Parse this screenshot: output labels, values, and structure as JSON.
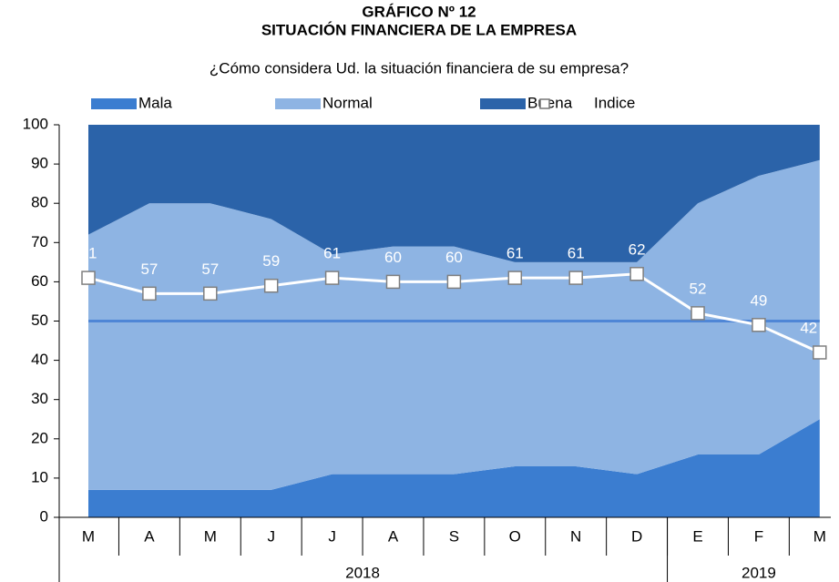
{
  "chart_data": {
    "type": "area",
    "title": "GRÁFICO Nº 12",
    "subtitle_bold": "SITUACIÓN FINANCIERA DE LA EMPRESA",
    "subtitle": "¿Cómo considera Ud. la situación financiera de su empresa?",
    "categories": [
      "M",
      "A",
      "M",
      "J",
      "J",
      "A",
      "S",
      "O",
      "N",
      "D",
      "E",
      "F",
      "M"
    ],
    "x_groups": [
      {
        "label": "2018",
        "span": 10
      },
      {
        "label": "2019",
        "span": 3
      }
    ],
    "series": [
      {
        "name": "Mala",
        "color": "#3b7dd0",
        "values": [
          7,
          7,
          7,
          7,
          11,
          11,
          11,
          13,
          13,
          11,
          16,
          16,
          25
        ]
      },
      {
        "name": "Normal",
        "color": "#8eb4e3",
        "values": [
          65,
          73,
          73,
          69,
          56,
          58,
          58,
          52,
          52,
          54,
          64,
          71,
          66
        ]
      },
      {
        "name": "Buena",
        "color": "#2b63a9",
        "values": [
          28,
          20,
          20,
          24,
          33,
          31,
          31,
          35,
          35,
          35,
          20,
          13,
          9
        ]
      },
      {
        "name": "Indice",
        "type": "line",
        "color": "#ffffff",
        "values": [
          61,
          57,
          57,
          59,
          61,
          60,
          60,
          61,
          61,
          62,
          52,
          49,
          42
        ]
      }
    ],
    "reference_line": {
      "value": 50,
      "color": "#4f86d6"
    },
    "ylim": [
      0,
      100
    ],
    "yticks": [
      0,
      10,
      20,
      30,
      40,
      50,
      60,
      70,
      80,
      90,
      100
    ]
  }
}
